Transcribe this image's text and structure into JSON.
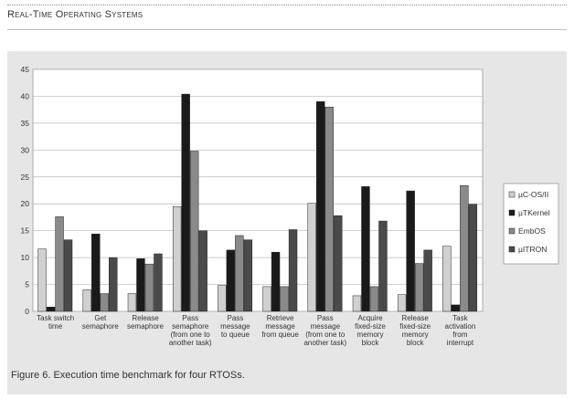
{
  "header": {
    "running_title": "Real-Time Operating Systems"
  },
  "caption": "Figure 6. Execution time benchmark for four RTOSs.",
  "colors": {
    "uC-OS/II": "#d0d0d0",
    "uTKernel": "#1a1a1a",
    "EmbOS": "#8a8a8a",
    "uITRON": "#4a4a4a"
  },
  "chart_data": {
    "type": "bar",
    "title": "",
    "xlabel": "",
    "ylabel": "",
    "ylim": [
      0,
      45
    ],
    "yticks": [
      0,
      5,
      10,
      15,
      20,
      25,
      30,
      35,
      40,
      45
    ],
    "grid": true,
    "legend_position": "right",
    "categories": [
      [
        "Task switch",
        "time"
      ],
      [
        "Get",
        "semaphore"
      ],
      [
        "Release",
        "semaphore"
      ],
      [
        "Pass",
        "semaphore",
        "(from one to",
        "another task)"
      ],
      [
        "Pass",
        "message",
        "to queue"
      ],
      [
        "Retrieve",
        "message",
        "from queue"
      ],
      [
        "Pass",
        "message",
        "(from one to",
        "another task)"
      ],
      [
        "Acquire",
        "fixed-size",
        "memory",
        "block"
      ],
      [
        "Release",
        "fixed-size",
        "memory",
        "block"
      ],
      [
        "Task",
        "activation",
        "from",
        "interrupt"
      ]
    ],
    "series": [
      {
        "name": "µC-OS/II",
        "values": [
          11.6,
          4.0,
          3.3,
          19.5,
          4.8,
          4.6,
          20.1,
          2.9,
          3.1,
          12.1
        ]
      },
      {
        "name": "µTKernel",
        "values": [
          0.8,
          14.4,
          9.8,
          40.4,
          11.4,
          11.0,
          39.0,
          23.2,
          22.4,
          1.2
        ]
      },
      {
        "name": "EmbOS",
        "values": [
          17.6,
          3.3,
          8.8,
          29.8,
          14.1,
          4.6,
          38.0,
          4.6,
          8.9,
          23.4
        ]
      },
      {
        "name": "µITRON",
        "values": [
          13.3,
          10.0,
          10.7,
          15.0,
          13.3,
          15.2,
          17.8,
          16.8,
          11.4,
          19.9
        ]
      }
    ]
  }
}
